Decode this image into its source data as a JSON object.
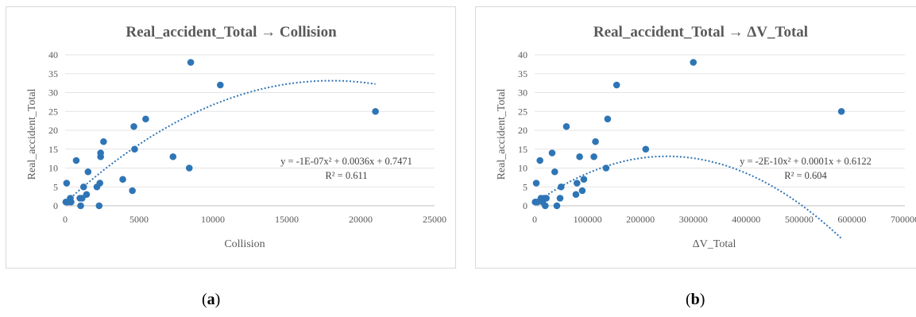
{
  "captions": [
    {
      "open": "(",
      "letter": "a",
      "close": ")"
    },
    {
      "open": "(",
      "letter": "b",
      "close": ")"
    }
  ],
  "chart_data": [
    {
      "type": "scatter",
      "title": "Real_accident_Total → Collision",
      "xlabel": "Collision",
      "ylabel": "Real_accident_Total",
      "xlim": [
        0,
        25000
      ],
      "ylim": [
        0,
        40
      ],
      "xticks": [
        "0",
        "5000",
        "10000",
        "15000",
        "20000",
        "25000"
      ],
      "yticks": [
        "0",
        "5",
        "10",
        "15",
        "20",
        "25",
        "30",
        "35",
        "40"
      ],
      "grid": "horizontal",
      "point_color": "#2e75b6",
      "trendline": {
        "type": "polynomial-2",
        "coefficients": [
          -1e-07,
          0.0036,
          0.7471
        ],
        "equation": "y = -1E-07x² + 0.0036x + 0.7471",
        "r2_label": "R² = 0.611",
        "range": [
          0,
          21000
        ]
      },
      "points": [
        {
          "x": 50,
          "y": 1
        },
        {
          "x": 100,
          "y": 6
        },
        {
          "x": 200,
          "y": 1
        },
        {
          "x": 350,
          "y": 2
        },
        {
          "x": 400,
          "y": 1
        },
        {
          "x": 750,
          "y": 12
        },
        {
          "x": 1000,
          "y": 2
        },
        {
          "x": 1050,
          "y": 0
        },
        {
          "x": 1150,
          "y": 2
        },
        {
          "x": 1250,
          "y": 5
        },
        {
          "x": 1450,
          "y": 3
        },
        {
          "x": 1550,
          "y": 9
        },
        {
          "x": 2150,
          "y": 5
        },
        {
          "x": 2300,
          "y": 0
        },
        {
          "x": 2350,
          "y": 6
        },
        {
          "x": 2400,
          "y": 13
        },
        {
          "x": 2400,
          "y": 14
        },
        {
          "x": 2600,
          "y": 17
        },
        {
          "x": 3900,
          "y": 7
        },
        {
          "x": 4550,
          "y": 4
        },
        {
          "x": 4650,
          "y": 21
        },
        {
          "x": 4700,
          "y": 15
        },
        {
          "x": 5450,
          "y": 23
        },
        {
          "x": 7300,
          "y": 13
        },
        {
          "x": 8400,
          "y": 10
        },
        {
          "x": 8500,
          "y": 38
        },
        {
          "x": 10500,
          "y": 32
        },
        {
          "x": 21000,
          "y": 25
        }
      ]
    },
    {
      "type": "scatter",
      "title": "Real_accident_Total → ΔV_Total",
      "xlabel": "ΔV_Total",
      "ylabel": "Real_accident_Total",
      "xlim": [
        0,
        700000
      ],
      "ylim": [
        0,
        40
      ],
      "xticks": [
        "0",
        "100000",
        "200000",
        "300000",
        "400000",
        "500000",
        "600000",
        "700000"
      ],
      "yticks": [
        "0",
        "5",
        "10",
        "15",
        "20",
        "25",
        "30",
        "35",
        "40"
      ],
      "grid": "horizontal",
      "point_color": "#2e75b6",
      "trendline": {
        "type": "polynomial-2",
        "coefficients": [
          -2e-10,
          0.0001,
          0.6122
        ],
        "equation": "y = -2E-10x² + 0.0001x + 0.6122",
        "r2_label": "R² = 0.604",
        "range": [
          20000,
          580000
        ]
      },
      "points": [
        {
          "x": 1000,
          "y": 1
        },
        {
          "x": 3000,
          "y": 6
        },
        {
          "x": 5000,
          "y": 1
        },
        {
          "x": 10000,
          "y": 12
        },
        {
          "x": 12000,
          "y": 2
        },
        {
          "x": 15000,
          "y": 1
        },
        {
          "x": 18000,
          "y": 2
        },
        {
          "x": 20000,
          "y": 0
        },
        {
          "x": 22000,
          "y": 2
        },
        {
          "x": 33000,
          "y": 14
        },
        {
          "x": 38000,
          "y": 9
        },
        {
          "x": 42000,
          "y": 0
        },
        {
          "x": 48000,
          "y": 2
        },
        {
          "x": 50000,
          "y": 5
        },
        {
          "x": 60000,
          "y": 21
        },
        {
          "x": 78000,
          "y": 3
        },
        {
          "x": 80000,
          "y": 6
        },
        {
          "x": 85000,
          "y": 13
        },
        {
          "x": 90000,
          "y": 4
        },
        {
          "x": 93000,
          "y": 7
        },
        {
          "x": 112000,
          "y": 13
        },
        {
          "x": 115000,
          "y": 17
        },
        {
          "x": 135000,
          "y": 10
        },
        {
          "x": 138000,
          "y": 23
        },
        {
          "x": 155000,
          "y": 32
        },
        {
          "x": 210000,
          "y": 15
        },
        {
          "x": 300000,
          "y": 38
        },
        {
          "x": 580000,
          "y": 25
        }
      ]
    }
  ]
}
